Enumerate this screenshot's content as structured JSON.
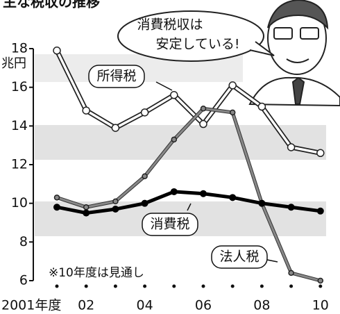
{
  "chart_data": {
    "type": "line",
    "title": "主な税収の推移",
    "y_unit": "兆円",
    "categories": [
      "2001年度",
      "02",
      null,
      "04",
      null,
      "06",
      null,
      "08",
      null,
      "10"
    ],
    "series": [
      {
        "name": "所得税",
        "color": "#ffffff",
        "values": [
          17.9,
          14.8,
          13.9,
          14.7,
          15.6,
          14.1,
          16.1,
          15.0,
          12.9,
          12.6
        ]
      },
      {
        "name": "法人税",
        "color": "#888888",
        "values": [
          10.3,
          9.8,
          10.1,
          11.4,
          13.3,
          14.9,
          14.7,
          10.0,
          6.4,
          6.0
        ]
      },
      {
        "name": "消費税",
        "color": "#000000",
        "values": [
          9.8,
          9.5,
          9.7,
          10.0,
          10.6,
          10.5,
          10.3,
          10.0,
          9.8,
          9.6
        ]
      }
    ],
    "ylim": [
      6,
      18
    ],
    "yticks": [
      6,
      8,
      10,
      12,
      14,
      16,
      18
    ],
    "annotations": [
      "消費税収は",
      "安定している!",
      "※10年度は見通し"
    ]
  }
}
